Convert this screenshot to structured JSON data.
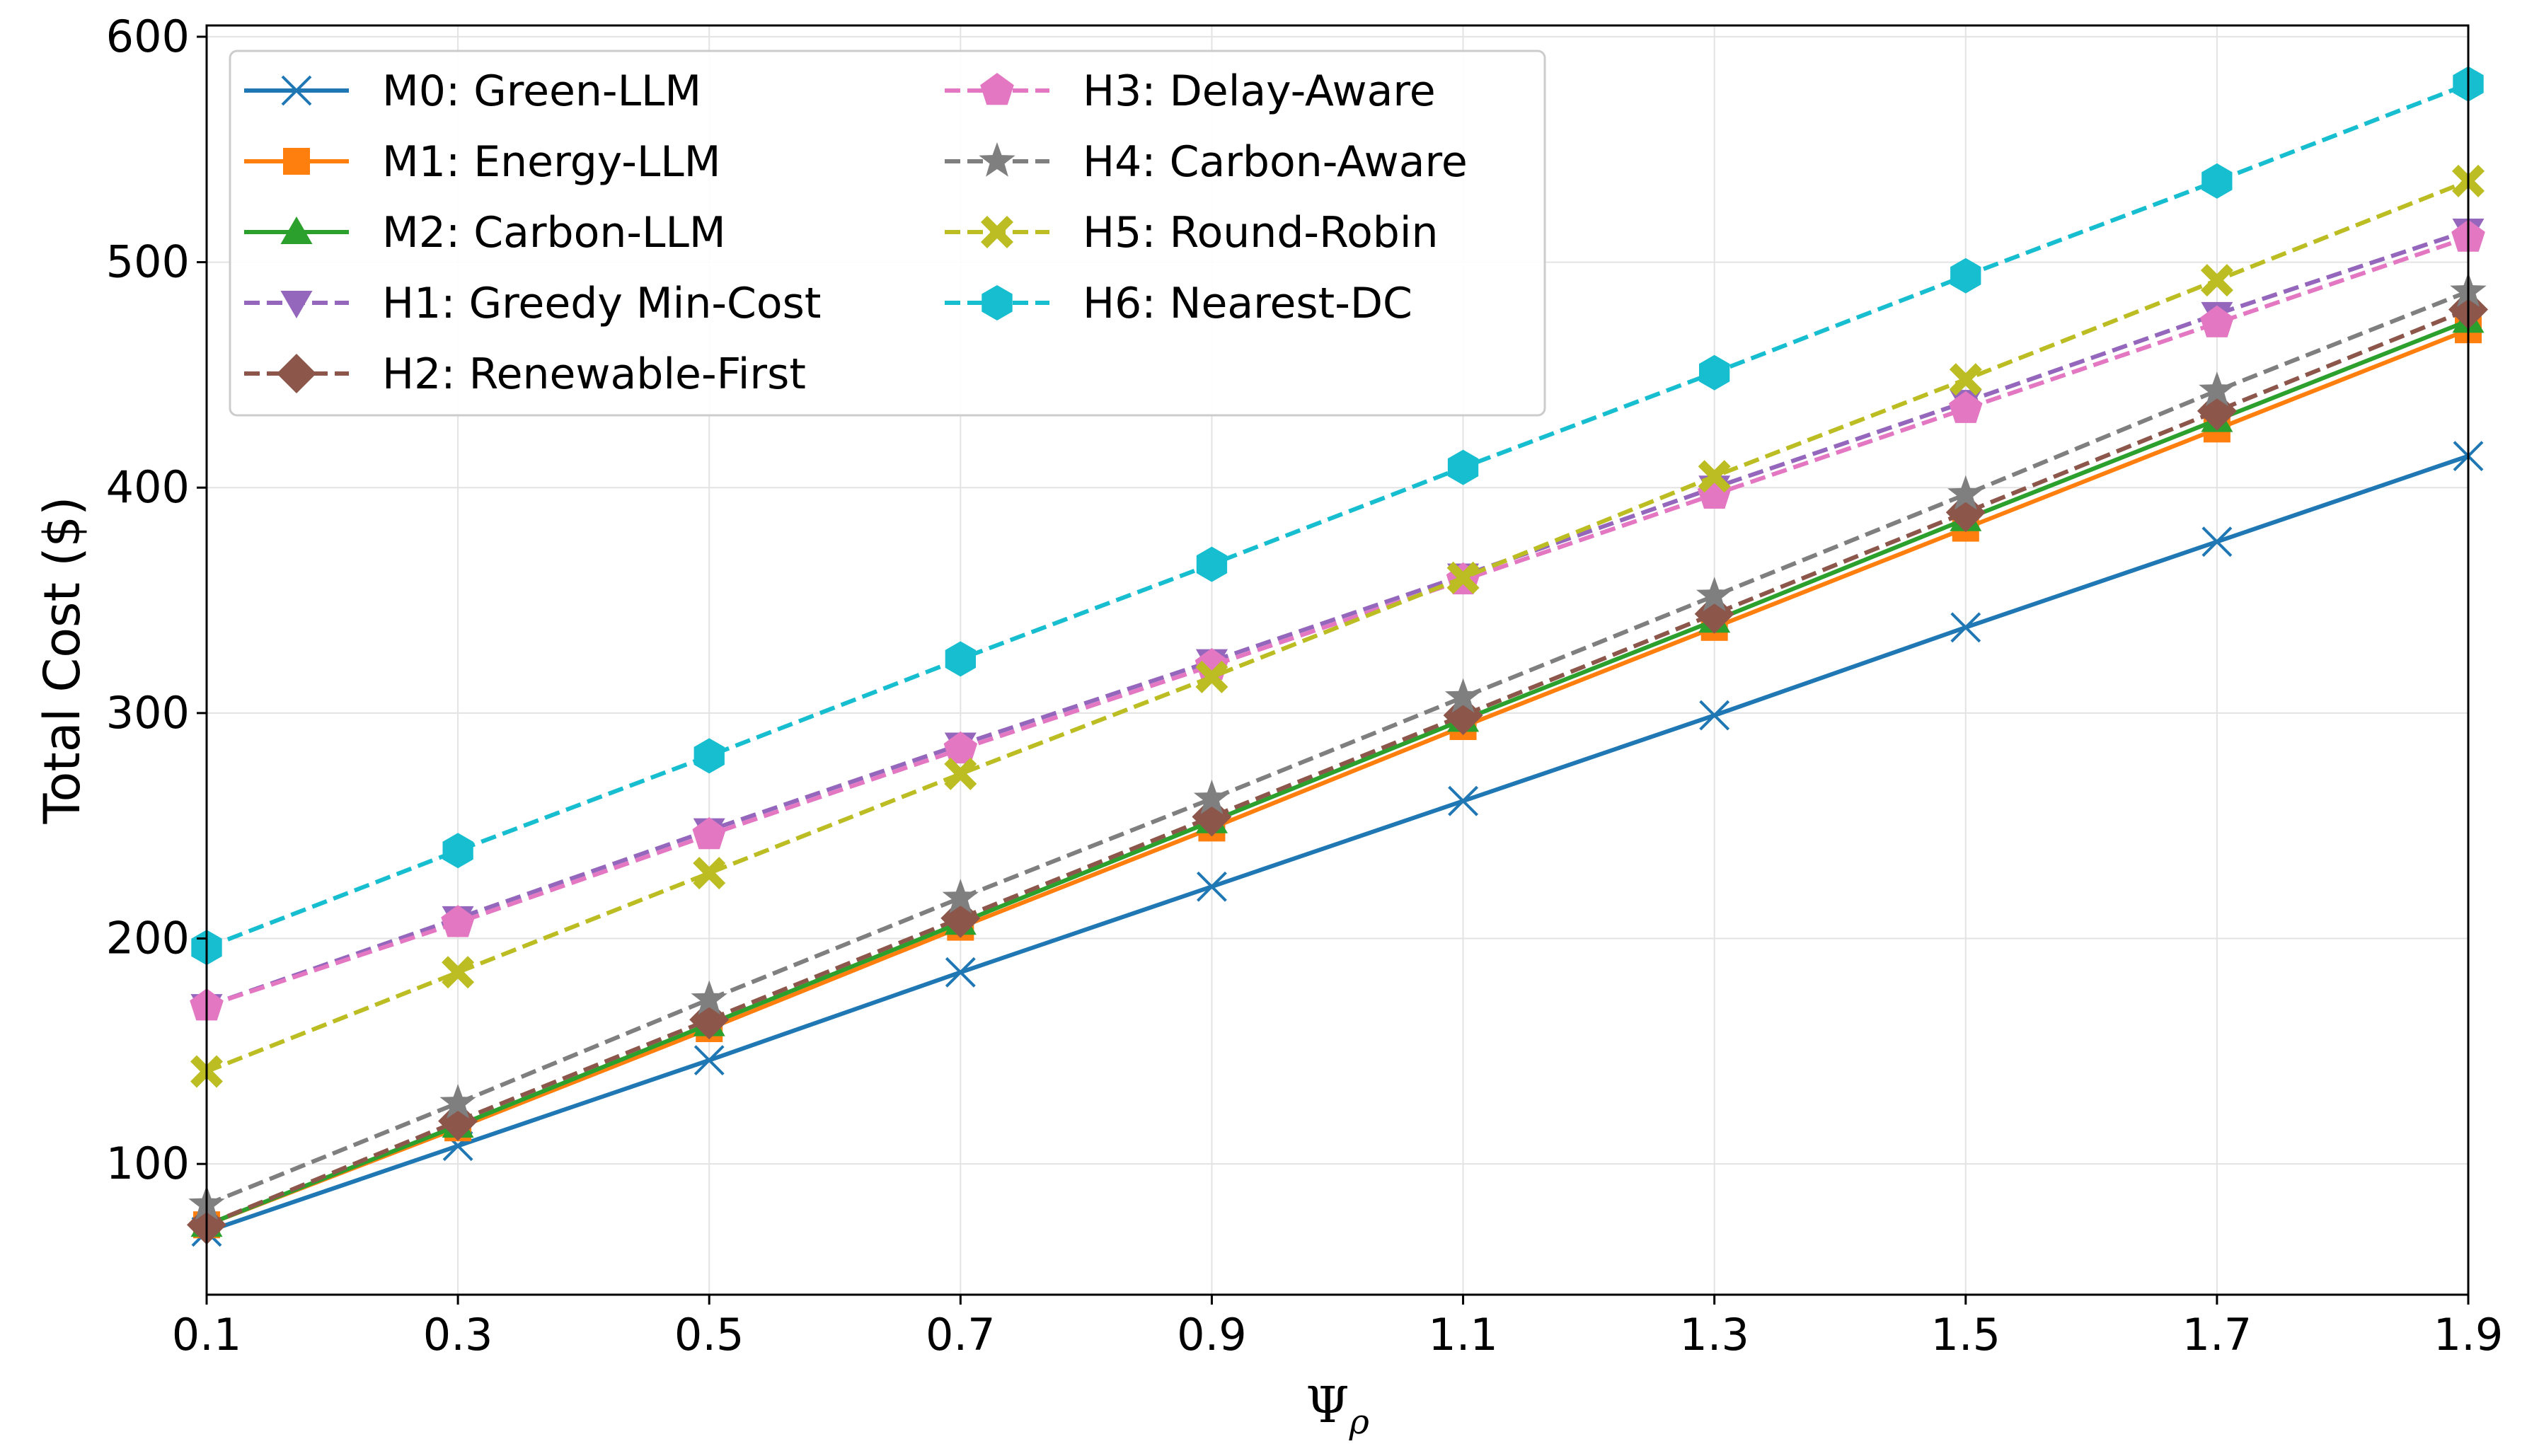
{
  "chart_data": {
    "type": "line",
    "title": "",
    "xlabel_symbol": "Ψ",
    "xlabel_subscript": "ρ",
    "ylabel": "Total Cost ($)",
    "x": [
      0.1,
      0.3,
      0.5,
      0.7,
      0.9,
      1.1,
      1.3,
      1.5,
      1.7,
      1.9
    ],
    "x_tick_labels": [
      "0.1",
      "0.3",
      "0.5",
      "0.7",
      "0.9",
      "1.1",
      "1.3",
      "1.5",
      "1.7",
      "1.9"
    ],
    "xlim": [
      0.1,
      1.9
    ],
    "ylim": [
      42,
      605
    ],
    "y_ticks": [
      100,
      200,
      300,
      400,
      500,
      600
    ],
    "grid": true,
    "legend_position": "upper-left",
    "series": [
      {
        "name": "M0: Green-LLM",
        "color": "#1f77b4",
        "marker": "x",
        "dashed": false,
        "values": [
          70,
          108,
          146,
          185,
          223,
          261,
          299,
          338,
          376,
          414
        ]
      },
      {
        "name": "M1: Energy-LLM",
        "color": "#ff7f0e",
        "marker": "square",
        "dashed": false,
        "values": [
          73,
          116,
          160,
          205,
          249,
          294,
          338,
          382,
          426,
          470
        ]
      },
      {
        "name": "M2: Carbon-LLM",
        "color": "#2ca02c",
        "marker": "triangle-up",
        "dashed": false,
        "values": [
          73,
          117,
          162,
          207,
          252,
          297,
          341,
          386,
          430,
          474
        ]
      },
      {
        "name": "H1: Greedy Min-Cost",
        "color": "#9467bd",
        "marker": "triangle-down",
        "dashed": true,
        "values": [
          170,
          209,
          248,
          286,
          323,
          361,
          400,
          438,
          477,
          514
        ]
      },
      {
        "name": "H2: Renewable-First",
        "color": "#8c564b",
        "marker": "diamond",
        "dashed": true,
        "values": [
          73,
          119,
          164,
          209,
          254,
          299,
          344,
          389,
          434,
          479
        ]
      },
      {
        "name": "H3: Delay-Aware",
        "color": "#e377c2",
        "marker": "pentagon",
        "dashed": true,
        "values": [
          170,
          207,
          246,
          284,
          321,
          359,
          397,
          435,
          473,
          511
        ]
      },
      {
        "name": "H4: Carbon-Aware",
        "color": "#7f7f7f",
        "marker": "star",
        "dashed": true,
        "values": [
          82,
          127,
          173,
          218,
          262,
          307,
          352,
          397,
          443,
          487
        ]
      },
      {
        "name": "H5: Round-Robin",
        "color": "#bcbd22",
        "marker": "X",
        "dashed": true,
        "values": [
          141,
          185,
          229,
          273,
          316,
          360,
          405,
          448,
          492,
          536
        ]
      },
      {
        "name": "H6: Nearest-DC",
        "color": "#17becf",
        "marker": "hexagon",
        "dashed": true,
        "values": [
          196,
          239,
          281,
          324,
          366,
          409,
          451,
          494,
          536,
          579
        ]
      }
    ]
  }
}
